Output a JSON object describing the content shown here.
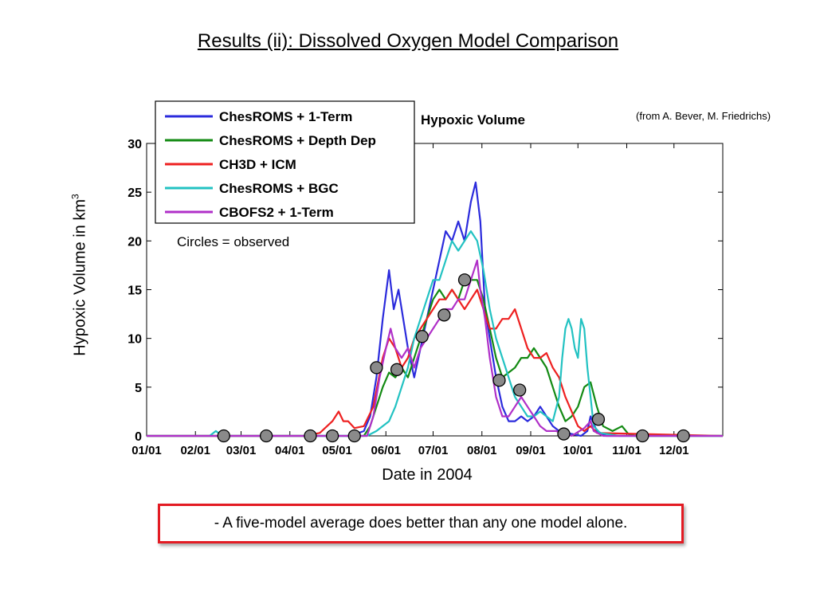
{
  "slide": {
    "title": "Results (ii): Dissolved Oxygen Model Comparison",
    "credit": "(from A. Bever, M. Friedrichs)",
    "ylabel_main": "Hypoxic Volume in km",
    "ylabel_sup": "3",
    "xlabel": "Date in 2004",
    "note": "- A five-model average does better than any one model alone."
  },
  "chart_data": {
    "type": "line",
    "title": "Hypoxic Volume",
    "annotation": "Circles = observed",
    "xlabel": "Date in 2004",
    "ylabel": "Hypoxic Volume in km3",
    "xlim": [
      0,
      366
    ],
    "ylim": [
      0,
      30
    ],
    "y_ticks": [
      0,
      5,
      10,
      15,
      20,
      25,
      30
    ],
    "x_ticks": [
      {
        "day": 0,
        "label": "01/01"
      },
      {
        "day": 31,
        "label": "02/01"
      },
      {
        "day": 60,
        "label": "03/01"
      },
      {
        "day": 91,
        "label": "04/01"
      },
      {
        "day": 121,
        "label": "05/01"
      },
      {
        "day": 152,
        "label": "06/01"
      },
      {
        "day": 182,
        "label": "07/01"
      },
      {
        "day": 213,
        "label": "08/01"
      },
      {
        "day": 244,
        "label": "09/01"
      },
      {
        "day": 274,
        "label": "10/01"
      },
      {
        "day": 305,
        "label": "11/01"
      },
      {
        "day": 335,
        "label": "12/01"
      }
    ],
    "legend_position": "top-left",
    "grid": false,
    "series": [
      {
        "name": "ChesROMS + 1-Term",
        "color": "#2b2bdc",
        "points": [
          [
            0,
            0
          ],
          [
            130,
            0
          ],
          [
            138,
            0.5
          ],
          [
            142,
            2
          ],
          [
            146,
            6
          ],
          [
            150,
            12
          ],
          [
            154,
            17
          ],
          [
            157,
            13
          ],
          [
            160,
            15
          ],
          [
            163,
            12
          ],
          [
            166,
            9
          ],
          [
            170,
            6
          ],
          [
            174,
            9
          ],
          [
            178,
            12
          ],
          [
            182,
            15
          ],
          [
            186,
            18
          ],
          [
            190,
            21
          ],
          [
            194,
            20
          ],
          [
            198,
            22
          ],
          [
            202,
            20
          ],
          [
            206,
            24
          ],
          [
            209,
            26
          ],
          [
            212,
            22
          ],
          [
            215,
            13
          ],
          [
            218,
            10
          ],
          [
            222,
            6
          ],
          [
            226,
            3
          ],
          [
            230,
            1.5
          ],
          [
            234,
            1.5
          ],
          [
            238,
            2
          ],
          [
            242,
            1.5
          ],
          [
            246,
            2
          ],
          [
            250,
            3
          ],
          [
            254,
            2
          ],
          [
            258,
            1
          ],
          [
            262,
            0.5
          ],
          [
            270,
            0.2
          ],
          [
            276,
            0
          ],
          [
            280,
            0.5
          ],
          [
            282,
            2
          ],
          [
            286,
            0.5
          ],
          [
            292,
            0
          ],
          [
            366,
            0
          ]
        ]
      },
      {
        "name": "ChesROMS + Depth Dep",
        "color": "#138a13",
        "points": [
          [
            0,
            0
          ],
          [
            138,
            0
          ],
          [
            142,
            1
          ],
          [
            146,
            3
          ],
          [
            150,
            5
          ],
          [
            154,
            6.5
          ],
          [
            158,
            6
          ],
          [
            162,
            7
          ],
          [
            166,
            6
          ],
          [
            170,
            8
          ],
          [
            174,
            10
          ],
          [
            178,
            12
          ],
          [
            182,
            14
          ],
          [
            186,
            15
          ],
          [
            190,
            14
          ],
          [
            194,
            15
          ],
          [
            198,
            14
          ],
          [
            202,
            16
          ],
          [
            206,
            16
          ],
          [
            210,
            16
          ],
          [
            214,
            14
          ],
          [
            218,
            11
          ],
          [
            222,
            8
          ],
          [
            226,
            6
          ],
          [
            230,
            6.5
          ],
          [
            234,
            7
          ],
          [
            238,
            8
          ],
          [
            242,
            8
          ],
          [
            246,
            9
          ],
          [
            250,
            8
          ],
          [
            254,
            7
          ],
          [
            258,
            5
          ],
          [
            262,
            3
          ],
          [
            266,
            1.5
          ],
          [
            270,
            2
          ],
          [
            274,
            3
          ],
          [
            278,
            5
          ],
          [
            282,
            5.5
          ],
          [
            286,
            3
          ],
          [
            290,
            1
          ],
          [
            296,
            0.5
          ],
          [
            302,
            1
          ],
          [
            306,
            0.2
          ],
          [
            310,
            0
          ],
          [
            366,
            0
          ]
        ]
      },
      {
        "name": "CH3D + ICM",
        "color": "#ee2020",
        "points": [
          [
            0,
            0
          ],
          [
            100,
            0
          ],
          [
            110,
            0.3
          ],
          [
            118,
            1.5
          ],
          [
            122,
            2.5
          ],
          [
            125,
            1.5
          ],
          [
            128,
            1.5
          ],
          [
            132,
            0.8
          ],
          [
            138,
            1
          ],
          [
            144,
            3
          ],
          [
            150,
            8
          ],
          [
            154,
            10
          ],
          [
            158,
            9
          ],
          [
            162,
            7
          ],
          [
            166,
            8
          ],
          [
            170,
            10
          ],
          [
            174,
            11
          ],
          [
            178,
            12
          ],
          [
            182,
            13
          ],
          [
            186,
            14
          ],
          [
            190,
            14
          ],
          [
            194,
            15
          ],
          [
            198,
            14
          ],
          [
            202,
            13
          ],
          [
            206,
            14
          ],
          [
            210,
            15
          ],
          [
            214,
            13
          ],
          [
            218,
            11
          ],
          [
            222,
            11
          ],
          [
            226,
            12
          ],
          [
            230,
            12
          ],
          [
            234,
            13
          ],
          [
            238,
            11
          ],
          [
            242,
            9
          ],
          [
            246,
            8
          ],
          [
            250,
            8
          ],
          [
            254,
            8.5
          ],
          [
            258,
            7
          ],
          [
            262,
            6
          ],
          [
            266,
            4
          ],
          [
            270,
            2.5
          ],
          [
            274,
            1
          ],
          [
            278,
            0.5
          ],
          [
            282,
            1
          ],
          [
            286,
            0.3
          ],
          [
            366,
            0
          ]
        ]
      },
      {
        "name": "ChesROMS + BGC",
        "color": "#22c2c2",
        "points": [
          [
            0,
            0
          ],
          [
            40,
            0
          ],
          [
            44,
            0.5
          ],
          [
            48,
            0
          ],
          [
            120,
            0
          ],
          [
            140,
            0
          ],
          [
            146,
            0.5
          ],
          [
            150,
            1
          ],
          [
            154,
            1.5
          ],
          [
            158,
            3
          ],
          [
            162,
            5
          ],
          [
            166,
            7
          ],
          [
            170,
            10
          ],
          [
            174,
            12
          ],
          [
            178,
            14
          ],
          [
            182,
            16
          ],
          [
            186,
            16
          ],
          [
            190,
            18
          ],
          [
            194,
            20
          ],
          [
            198,
            19
          ],
          [
            202,
            20
          ],
          [
            206,
            21
          ],
          [
            210,
            20
          ],
          [
            214,
            17
          ],
          [
            218,
            13
          ],
          [
            222,
            10
          ],
          [
            226,
            8
          ],
          [
            230,
            6
          ],
          [
            234,
            4
          ],
          [
            238,
            3
          ],
          [
            242,
            2
          ],
          [
            246,
            2
          ],
          [
            250,
            2.5
          ],
          [
            254,
            2
          ],
          [
            258,
            1.5
          ],
          [
            262,
            4
          ],
          [
            264,
            8
          ],
          [
            266,
            11
          ],
          [
            268,
            12
          ],
          [
            270,
            11
          ],
          [
            272,
            9
          ],
          [
            274,
            8
          ],
          [
            276,
            12
          ],
          [
            278,
            11
          ],
          [
            280,
            7
          ],
          [
            282,
            4
          ],
          [
            284,
            1
          ],
          [
            288,
            0.3
          ],
          [
            300,
            0
          ],
          [
            366,
            0
          ]
        ]
      },
      {
        "name": "CBOFS2 + 1-Term",
        "color": "#b030c8",
        "points": [
          [
            0,
            0
          ],
          [
            140,
            0
          ],
          [
            144,
            2
          ],
          [
            148,
            6
          ],
          [
            152,
            9
          ],
          [
            155,
            11
          ],
          [
            158,
            9
          ],
          [
            162,
            8
          ],
          [
            166,
            9
          ],
          [
            170,
            7
          ],
          [
            174,
            9
          ],
          [
            178,
            10
          ],
          [
            182,
            11
          ],
          [
            186,
            12
          ],
          [
            190,
            13
          ],
          [
            194,
            13
          ],
          [
            198,
            14
          ],
          [
            202,
            14
          ],
          [
            206,
            16
          ],
          [
            210,
            18
          ],
          [
            212,
            15
          ],
          [
            215,
            12
          ],
          [
            218,
            8
          ],
          [
            222,
            4
          ],
          [
            226,
            2
          ],
          [
            230,
            2
          ],
          [
            234,
            3
          ],
          [
            238,
            4
          ],
          [
            242,
            3
          ],
          [
            246,
            2
          ],
          [
            250,
            1
          ],
          [
            254,
            0.5
          ],
          [
            260,
            0.5
          ],
          [
            270,
            0
          ],
          [
            278,
            0.8
          ],
          [
            282,
            1.5
          ],
          [
            284,
            0.5
          ],
          [
            290,
            0
          ],
          [
            366,
            0
          ]
        ]
      }
    ],
    "observed": {
      "name": "Circles = observed",
      "points": [
        [
          49,
          0
        ],
        [
          76,
          0
        ],
        [
          104,
          0
        ],
        [
          118,
          0
        ],
        [
          132,
          0
        ],
        [
          146,
          7
        ],
        [
          159,
          6.8
        ],
        [
          175,
          10.2
        ],
        [
          189,
          12.4
        ],
        [
          202,
          16
        ],
        [
          224,
          5.7
        ],
        [
          237,
          4.7
        ],
        [
          265,
          0.2
        ],
        [
          287,
          1.7
        ],
        [
          315,
          0
        ],
        [
          341,
          0
        ]
      ]
    }
  }
}
